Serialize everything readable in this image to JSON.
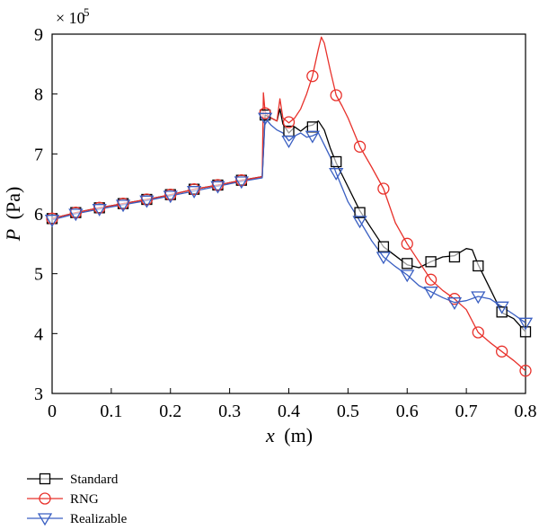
{
  "chart_data": {
    "type": "line",
    "xlabel_var": "x",
    "xlabel_unit": "(m)",
    "ylabel_var": "P",
    "ylabel_unit": "(Pa)",
    "y_multiplier_base": "× 10",
    "y_multiplier_exp": "5",
    "xlim": [
      0,
      0.8
    ],
    "ylim": [
      3,
      9
    ],
    "x_ticks": [
      0,
      0.1,
      0.2,
      0.3,
      0.4,
      0.5,
      0.6,
      0.7,
      0.8
    ],
    "x_tick_labels": [
      "0",
      "0.1",
      "0.2",
      "0.3",
      "0.4",
      "0.5",
      "0.6",
      "0.7",
      "0.8"
    ],
    "y_ticks": [
      3,
      4,
      5,
      6,
      7,
      8,
      9
    ],
    "y_tick_labels": [
      "3",
      "4",
      "5",
      "6",
      "7",
      "8",
      "9"
    ],
    "grid": false,
    "legend_position": "bottom-left, below plot",
    "series": [
      {
        "name": "Standard",
        "color": "#000000",
        "marker": "square",
        "x": [
          0,
          0.04,
          0.08,
          0.12,
          0.16,
          0.2,
          0.24,
          0.28,
          0.32,
          0.355,
          0.36,
          0.37,
          0.38,
          0.385,
          0.39,
          0.4,
          0.41,
          0.42,
          0.43,
          0.44,
          0.45,
          0.46,
          0.47,
          0.48,
          0.5,
          0.52,
          0.54,
          0.56,
          0.58,
          0.6,
          0.62,
          0.64,
          0.66,
          0.68,
          0.7,
          0.71,
          0.72,
          0.74,
          0.76,
          0.78,
          0.8
        ],
        "y": [
          5.92,
          6.02,
          6.1,
          6.17,
          6.24,
          6.32,
          6.41,
          6.48,
          6.56,
          6.62,
          7.65,
          7.6,
          7.55,
          7.75,
          7.5,
          7.35,
          7.45,
          7.38,
          7.46,
          7.48,
          7.55,
          7.4,
          7.1,
          6.85,
          6.45,
          6.05,
          5.75,
          5.45,
          5.3,
          5.15,
          5.1,
          5.2,
          5.28,
          5.3,
          5.42,
          5.4,
          5.15,
          4.75,
          4.35,
          4.25,
          4.03
        ],
        "marker_x": [
          0,
          0.04,
          0.08,
          0.12,
          0.16,
          0.2,
          0.24,
          0.28,
          0.32,
          0.36,
          0.4,
          0.44,
          0.48,
          0.52,
          0.56,
          0.6,
          0.64,
          0.68,
          0.72,
          0.76,
          0.8
        ],
        "marker_y": [
          5.92,
          6.02,
          6.1,
          6.17,
          6.24,
          6.32,
          6.41,
          6.48,
          6.56,
          7.65,
          7.38,
          7.45,
          6.87,
          6.02,
          5.45,
          5.17,
          5.2,
          5.28,
          5.13,
          4.36,
          4.03
        ]
      },
      {
        "name": "RNG",
        "color": "#e8312b",
        "marker": "circle",
        "x": [
          0,
          0.04,
          0.08,
          0.12,
          0.16,
          0.2,
          0.24,
          0.28,
          0.32,
          0.355,
          0.357,
          0.36,
          0.37,
          0.38,
          0.385,
          0.39,
          0.4,
          0.41,
          0.42,
          0.43,
          0.44,
          0.45,
          0.455,
          0.46,
          0.47,
          0.48,
          0.49,
          0.5,
          0.52,
          0.54,
          0.56,
          0.58,
          0.6,
          0.62,
          0.64,
          0.66,
          0.68,
          0.7,
          0.72,
          0.74,
          0.76,
          0.78,
          0.8
        ],
        "y": [
          5.92,
          6.02,
          6.1,
          6.17,
          6.24,
          6.32,
          6.41,
          6.48,
          6.56,
          6.62,
          8.02,
          7.7,
          7.6,
          7.55,
          7.92,
          7.6,
          7.52,
          7.6,
          7.75,
          8.0,
          8.3,
          8.75,
          8.95,
          8.85,
          8.4,
          7.98,
          7.8,
          7.6,
          7.12,
          6.78,
          6.42,
          5.85,
          5.5,
          5.2,
          4.9,
          4.72,
          4.58,
          4.4,
          4.02,
          3.85,
          3.7,
          3.55,
          3.38
        ],
        "marker_x": [
          0,
          0.04,
          0.08,
          0.12,
          0.16,
          0.2,
          0.24,
          0.28,
          0.32,
          0.36,
          0.4,
          0.44,
          0.48,
          0.52,
          0.56,
          0.6,
          0.64,
          0.68,
          0.72,
          0.76,
          0.8
        ],
        "marker_y": [
          5.92,
          6.02,
          6.1,
          6.17,
          6.24,
          6.32,
          6.41,
          6.48,
          6.56,
          7.68,
          7.53,
          8.3,
          7.98,
          7.12,
          6.42,
          5.5,
          4.9,
          4.58,
          4.02,
          3.7,
          3.38
        ]
      },
      {
        "name": "Realizable",
        "color": "#3a5fc2",
        "marker": "triangle-down",
        "x": [
          0,
          0.04,
          0.08,
          0.12,
          0.16,
          0.2,
          0.24,
          0.28,
          0.32,
          0.355,
          0.36,
          0.37,
          0.38,
          0.39,
          0.4,
          0.41,
          0.42,
          0.43,
          0.44,
          0.45,
          0.46,
          0.47,
          0.48,
          0.5,
          0.52,
          0.54,
          0.56,
          0.58,
          0.6,
          0.62,
          0.64,
          0.66,
          0.68,
          0.7,
          0.72,
          0.74,
          0.76,
          0.78,
          0.8
        ],
        "y": [
          5.9,
          6.0,
          6.08,
          6.15,
          6.22,
          6.3,
          6.38,
          6.46,
          6.54,
          6.6,
          7.6,
          7.48,
          7.4,
          7.35,
          7.22,
          7.3,
          7.35,
          7.28,
          7.3,
          7.35,
          7.15,
          6.95,
          6.68,
          6.2,
          5.88,
          5.55,
          5.28,
          5.12,
          4.98,
          4.8,
          4.7,
          4.6,
          4.52,
          4.55,
          4.62,
          4.58,
          4.45,
          4.32,
          4.18
        ],
        "marker_x": [
          0,
          0.04,
          0.08,
          0.12,
          0.16,
          0.2,
          0.24,
          0.28,
          0.32,
          0.36,
          0.4,
          0.44,
          0.48,
          0.52,
          0.56,
          0.6,
          0.64,
          0.68,
          0.72,
          0.76,
          0.8
        ],
        "marker_y": [
          5.9,
          6.0,
          6.08,
          6.15,
          6.22,
          6.3,
          6.38,
          6.46,
          6.54,
          7.6,
          7.22,
          7.3,
          6.68,
          5.88,
          5.28,
          4.98,
          4.7,
          4.52,
          4.62,
          4.45,
          4.18
        ]
      }
    ]
  }
}
